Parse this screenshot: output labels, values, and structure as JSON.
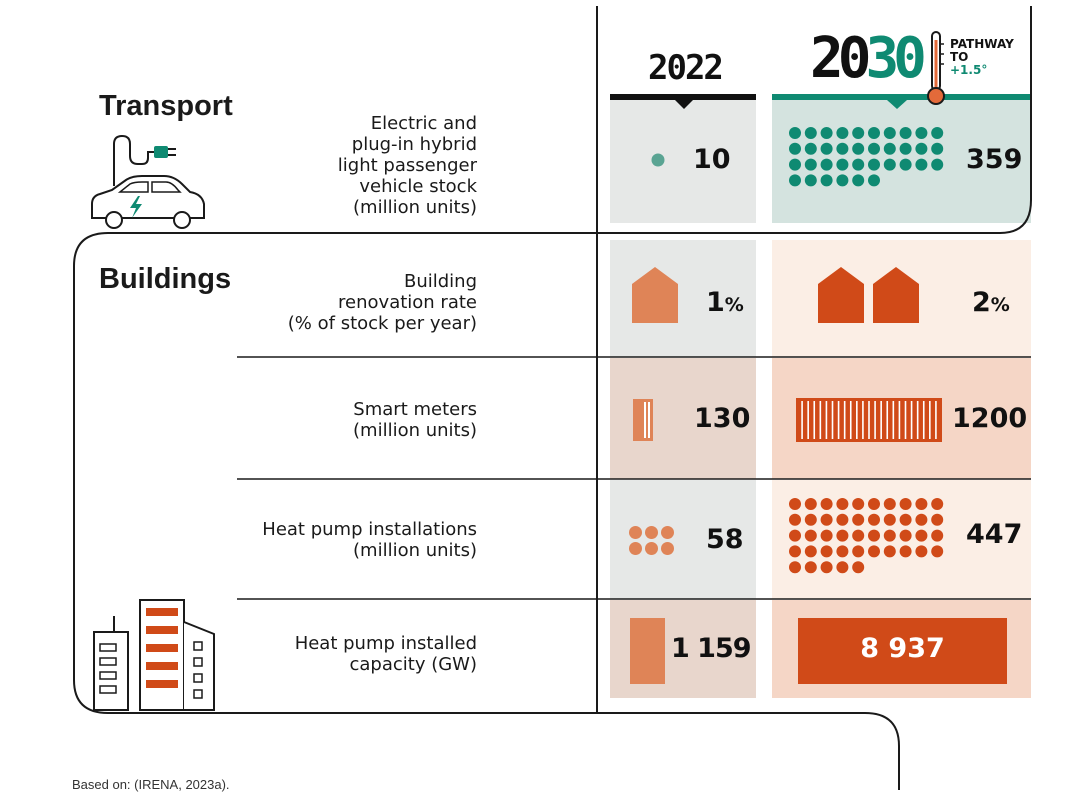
{
  "header": {
    "year_2022": "2022",
    "year_2030_prefix": "20",
    "year_2030_suffix": "30",
    "pathway_line1": "PATHWAY",
    "pathway_line2": "TO",
    "pathway_line3": "+1.5°"
  },
  "sectors": {
    "transport": "Transport",
    "buildings": "Buildings"
  },
  "rows": [
    {
      "indicator": [
        "Electric and",
        "plug-in hybrid",
        "light passenger",
        "vehicle stock",
        "(million units)"
      ],
      "value_2022": "10",
      "value_2030": "359"
    },
    {
      "indicator": [
        "Building",
        "renovation rate",
        "(% of stock per year)"
      ],
      "value_2022": "1",
      "value_2030": "2",
      "unit": "%"
    },
    {
      "indicator": [
        "Smart meters",
        "(million units)"
      ],
      "value_2022": "130",
      "value_2030": "1200"
    },
    {
      "indicator": [
        "Heat pump installations",
        "(million units)"
      ],
      "value_2022": "58",
      "value_2030": "447"
    },
    {
      "indicator": [
        "Heat pump installed",
        "capacity (GW)"
      ],
      "value_2022": "1 159",
      "value_2030": "8 937"
    }
  ],
  "source": "Based on: (IRENA, 2023a).",
  "colors": {
    "teal": "#0f8a72",
    "teal_panel": "#d4e3df",
    "grey_panel": "#e6e8e7",
    "orange_dark": "#d04a18",
    "orange_light": "#df8457",
    "peach_light": "#fbeee5",
    "peach_mid": "#f5d6c6",
    "taupe": "#e8d6cc"
  }
}
